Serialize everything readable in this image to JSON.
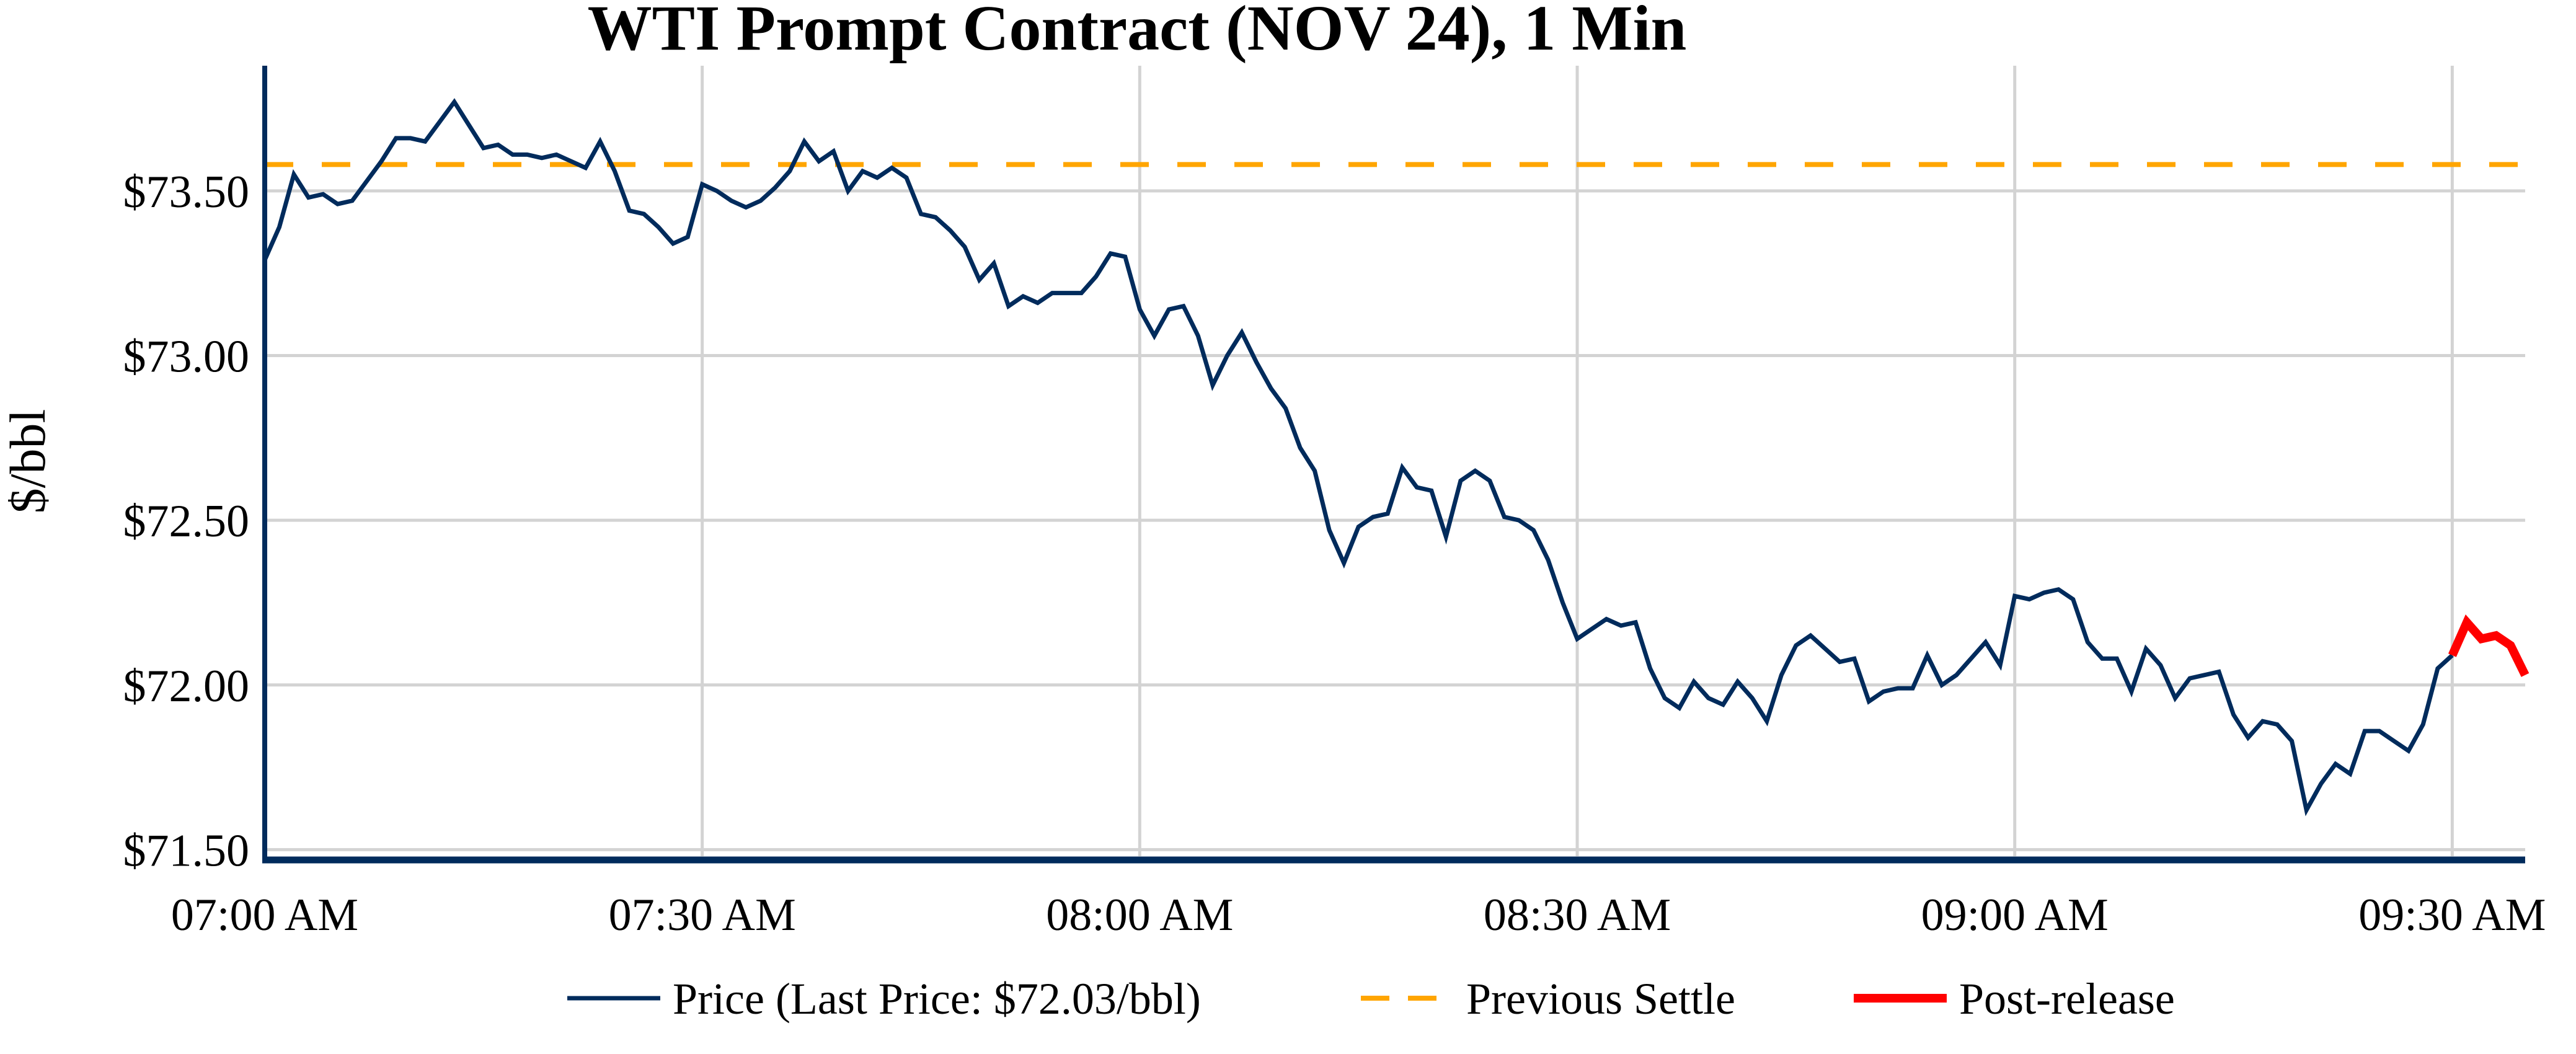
{
  "chart_data": {
    "type": "line",
    "title": "WTI Prompt Contract (NOV 24), 1 Min",
    "xlabel": "",
    "ylabel": "$/bbl",
    "x_unit": "minutes after 07:00 AM",
    "xlim": [
      0,
      155
    ],
    "ylim": [
      71.48,
      73.88
    ],
    "x_ticks": [
      {
        "value": 0,
        "label": "07:00 AM"
      },
      {
        "value": 30,
        "label": "07:30 AM"
      },
      {
        "value": 60,
        "label": "08:00 AM"
      },
      {
        "value": 90,
        "label": "08:30 AM"
      },
      {
        "value": 120,
        "label": "09:00 AM"
      },
      {
        "value": 150,
        "label": "09:30 AM"
      }
    ],
    "y_ticks": [
      {
        "value": 71.5,
        "label": "$71.50"
      },
      {
        "value": 72.0,
        "label": "$72.00"
      },
      {
        "value": 72.5,
        "label": "$72.50"
      },
      {
        "value": 73.0,
        "label": "$73.00"
      },
      {
        "value": 73.5,
        "label": "$73.50"
      }
    ],
    "grid": true,
    "legend_position": "bottom",
    "series": [
      {
        "name": "Price (Last Price: $72.03/bbl)",
        "color": "#002b5c",
        "style": "solid",
        "x_start": 0,
        "values": [
          73.29,
          73.39,
          73.55,
          73.48,
          73.49,
          73.46,
          73.47,
          73.53,
          73.59,
          73.66,
          73.66,
          73.65,
          73.71,
          73.77,
          73.7,
          73.63,
          73.64,
          73.61,
          73.61,
          73.6,
          73.61,
          73.59,
          73.57,
          73.65,
          73.56,
          73.44,
          73.43,
          73.39,
          73.34,
          73.36,
          73.52,
          73.5,
          73.47,
          73.45,
          73.47,
          73.51,
          73.56,
          73.65,
          73.59,
          73.62,
          73.5,
          73.56,
          73.54,
          73.57,
          73.54,
          73.43,
          73.42,
          73.38,
          73.33,
          73.23,
          73.28,
          73.15,
          73.18,
          73.16,
          73.19,
          73.19,
          73.19,
          73.24,
          73.31,
          73.3,
          73.14,
          73.06,
          73.14,
          73.15,
          73.06,
          72.91,
          73.0,
          73.07,
          72.98,
          72.9,
          72.84,
          72.72,
          72.65,
          72.47,
          72.37,
          72.48,
          72.51,
          72.52,
          72.66,
          72.6,
          72.59,
          72.45,
          72.62,
          72.65,
          72.62,
          72.51,
          72.5,
          72.47,
          72.38,
          72.25,
          72.14,
          72.17,
          72.2,
          72.18,
          72.19,
          72.05,
          71.96,
          71.93,
          72.01,
          71.96,
          71.94,
          72.01,
          71.96,
          71.89,
          72.03,
          72.12,
          72.15,
          72.11,
          72.07,
          72.08,
          71.95,
          71.98,
          71.99,
          71.99,
          72.09,
          72.0,
          72.03,
          72.08,
          72.13,
          72.06,
          72.27,
          72.26,
          72.28,
          72.29,
          72.26,
          72.13,
          72.08,
          72.08,
          71.98,
          72.11,
          72.06,
          71.96,
          72.02,
          72.03,
          72.04,
          71.91,
          71.84,
          71.89,
          71.88,
          71.83,
          71.62,
          71.7,
          71.76,
          71.73,
          71.86,
          71.86,
          71.83,
          71.8,
          71.88,
          72.05,
          72.09
        ]
      },
      {
        "name": "Previous Settle",
        "color": "#ffa500",
        "style": "dashed",
        "value": 73.58
      },
      {
        "name": "Post-release",
        "color": "#ff0000",
        "style": "solid",
        "x_start": 150,
        "values": [
          72.09,
          72.19,
          72.14,
          72.15,
          72.12,
          72.03
        ]
      }
    ]
  }
}
